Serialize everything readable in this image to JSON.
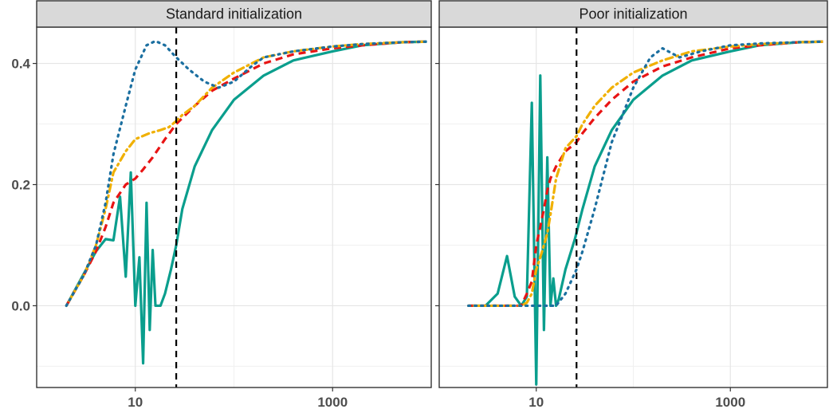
{
  "chart_data": {
    "type": "line",
    "x_scale": "log10",
    "xlim": [
      1,
      10000
    ],
    "ylim": [
      -0.135,
      0.46
    ],
    "x_ticks": [
      10,
      1000
    ],
    "x_tick_labels": [
      "10",
      "1000"
    ],
    "y_ticks": [
      0.0,
      0.2,
      0.4
    ],
    "y_tick_labels": [
      "0.0",
      "0.2",
      "0.4"
    ],
    "grid": true,
    "vline_x": 26,
    "line_colors": {
      "teal": "#0a9e8d",
      "red": "#e81414",
      "orange": "#f0b000",
      "blue": "#1b6fa0"
    },
    "panels": [
      {
        "title": "Standard initialization",
        "series": [
          {
            "style": "solid",
            "color": "#0a9e8d",
            "x": [
              2,
              4,
              5,
              6,
              7,
              8,
              9,
              10,
              11,
              12,
              13,
              14,
              15,
              16,
              18,
              20,
              23,
              26,
              30,
              40,
              60,
              100,
              200,
              400,
              1000,
              2000,
              5000,
              9000
            ],
            "y": [
              0.0,
              0.09,
              0.11,
              0.108,
              0.18,
              0.048,
              0.22,
              0.0,
              0.08,
              -0.095,
              0.17,
              -0.04,
              0.092,
              0.0,
              0.0,
              0.02,
              0.06,
              0.1,
              0.16,
              0.23,
              0.29,
              0.34,
              0.38,
              0.405,
              0.42,
              0.43,
              0.435,
              0.436
            ]
          },
          {
            "style": "dashed",
            "color": "#e81414",
            "x": [
              2,
              3,
              4,
              5,
              6,
              8,
              10,
              12,
              15,
              20,
              26,
              30,
              40,
              60,
              100,
              200,
              400,
              1000,
              2000,
              5000,
              9000
            ],
            "y": [
              0.0,
              0.05,
              0.09,
              0.13,
              0.17,
              0.2,
              0.21,
              0.225,
              0.245,
              0.275,
              0.3,
              0.31,
              0.33,
              0.355,
              0.375,
              0.4,
              0.415,
              0.425,
              0.43,
              0.435,
              0.436
            ]
          },
          {
            "style": "dotdash",
            "color": "#f0b000",
            "x": [
              2,
              3,
              4,
              5,
              6,
              8,
              10,
              14,
              18,
              22,
              26,
              30,
              40,
              60,
              100,
              200,
              400,
              1000,
              2000,
              5000,
              9000
            ],
            "y": [
              0.0,
              0.05,
              0.1,
              0.16,
              0.22,
              0.255,
              0.275,
              0.285,
              0.29,
              0.295,
              0.305,
              0.315,
              0.33,
              0.36,
              0.385,
              0.41,
              0.42,
              0.428,
              0.432,
              0.435,
              0.436
            ]
          },
          {
            "style": "dotted",
            "color": "#1b6fa0",
            "x": [
              2,
              3,
              4,
              5,
              6,
              8,
              10,
              13,
              16,
              20,
              26,
              35,
              50,
              70,
              100,
              150,
              200,
              400,
              1000,
              2000,
              5000,
              9000
            ],
            "y": [
              0.0,
              0.05,
              0.1,
              0.17,
              0.25,
              0.33,
              0.39,
              0.43,
              0.437,
              0.43,
              0.41,
              0.39,
              0.37,
              0.36,
              0.37,
              0.395,
              0.41,
              0.42,
              0.428,
              0.432,
              0.435,
              0.436
            ]
          }
        ]
      },
      {
        "title": "Poor initialization",
        "series": [
          {
            "style": "solid",
            "color": "#0a9e8d",
            "x": [
              2,
              3,
              4,
              5,
              6,
              7,
              8,
              9,
              10,
              11,
              12,
              13,
              14,
              15,
              16,
              17,
              20,
              25,
              30,
              40,
              60,
              100,
              200,
              400,
              1000,
              2000,
              5000,
              9000
            ],
            "y": [
              0.0,
              0.0,
              0.02,
              0.082,
              0.015,
              0.0,
              0.015,
              0.335,
              -0.13,
              0.38,
              -0.04,
              0.245,
              0.0,
              0.045,
              0.0,
              0.01,
              0.06,
              0.11,
              0.16,
              0.23,
              0.29,
              0.34,
              0.38,
              0.405,
              0.42,
              0.43,
              0.435,
              0.436
            ]
          },
          {
            "style": "dashed",
            "color": "#e81414",
            "x": [
              2,
              3,
              4,
              5,
              6,
              7,
              8,
              9,
              10,
              11,
              12,
              13,
              14,
              16,
              20,
              26,
              30,
              40,
              60,
              100,
              200,
              400,
              1000,
              2000,
              5000,
              9000
            ],
            "y": [
              0.0,
              0.0,
              0.0,
              0.0,
              0.0,
              0.0,
              0.02,
              0.04,
              0.1,
              0.13,
              0.16,
              0.19,
              0.21,
              0.23,
              0.255,
              0.27,
              0.285,
              0.31,
              0.34,
              0.37,
              0.395,
              0.41,
              0.425,
              0.43,
              0.435,
              0.436
            ]
          },
          {
            "style": "dotdash",
            "color": "#f0b000",
            "x": [
              2,
              3,
              4,
              5,
              6,
              7,
              8,
              9,
              10,
              11,
              12,
              13,
              14,
              16,
              20,
              26,
              30,
              40,
              60,
              100,
              200,
              400,
              1000,
              2000,
              5000,
              9000
            ],
            "y": [
              0.0,
              0.0,
              0.0,
              0.0,
              0.0,
              0.0,
              0.005,
              0.02,
              0.06,
              0.08,
              0.1,
              0.12,
              0.15,
              0.21,
              0.26,
              0.28,
              0.3,
              0.33,
              0.36,
              0.385,
              0.405,
              0.42,
              0.428,
              0.432,
              0.435,
              0.436
            ]
          },
          {
            "style": "dotted",
            "color": "#1b6fa0",
            "x": [
              2,
              3,
              4,
              5,
              6,
              7,
              8,
              9,
              10,
              11,
              12,
              13,
              14,
              16,
              20,
              26,
              30,
              40,
              60,
              100,
              150,
              200,
              300,
              500,
              1000,
              2000,
              5000,
              9000
            ],
            "y": [
              0.0,
              0.0,
              0.0,
              0.0,
              0.0,
              0.0,
              0.0,
              0.0,
              0.0,
              0.0,
              0.0,
              0.0,
              0.0,
              0.0,
              0.02,
              0.06,
              0.09,
              0.16,
              0.27,
              0.36,
              0.41,
              0.425,
              0.41,
              0.42,
              0.43,
              0.433,
              0.435,
              0.436
            ]
          }
        ]
      }
    ]
  }
}
